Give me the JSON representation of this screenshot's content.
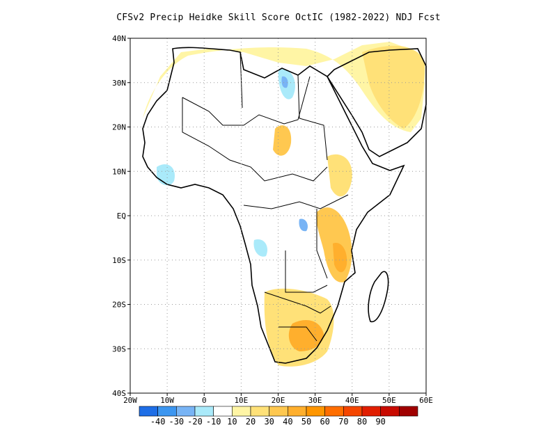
{
  "title": "CFSv2 Precip Heidke Skill Score OctIC (1982-2022) NDJ Fcst",
  "axes": {
    "lat_labels": [
      "40N",
      "30N",
      "20N",
      "10N",
      "EQ",
      "10S",
      "20S",
      "30S",
      "40S"
    ],
    "lon_labels": [
      "20W",
      "10W",
      "0",
      "10E",
      "20E",
      "30E",
      "40E",
      "50E",
      "60E"
    ],
    "lat_range": [
      -40,
      40
    ],
    "lon_range": [
      -20,
      60
    ],
    "grid": "dotted"
  },
  "colorbar": {
    "colors": [
      "#1e6ee6",
      "#3c96f0",
      "#78b4f5",
      "#aaeafa",
      "#ffffff",
      "#fff5a5",
      "#ffe178",
      "#ffc850",
      "#ffaf2d",
      "#ff9600",
      "#ff6e00",
      "#f54600",
      "#e11e00",
      "#c80a00",
      "#a00000"
    ],
    "labels": [
      "-40",
      "-30",
      "-20",
      "-10",
      "10",
      "20",
      "30",
      "40",
      "50",
      "60",
      "70",
      "80",
      "90"
    ]
  }
}
